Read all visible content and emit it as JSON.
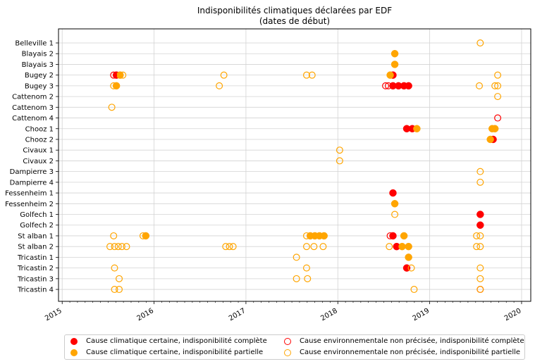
{
  "chart_data": {
    "type": "scatter",
    "title": "Indisponibilités climatiques déclarées par EDF",
    "subtitle": "(dates de début)",
    "xlabel": "",
    "ylabel": "",
    "x_ticks": [
      "2015",
      "2016",
      "2017",
      "2018",
      "2019",
      "2020"
    ],
    "xlim": [
      2014.96,
      2020.1
    ],
    "grid": true,
    "legend_placement": "bottom-center",
    "categories": [
      "Belleville 1",
      "Blayais 2",
      "Blayais 3",
      "Bugey 2",
      "Bugey 3",
      "Cattenom 2",
      "Cattenom 3",
      "Cattenom 4",
      "Chooz 1",
      "Chooz 2",
      "Civaux 1",
      "Civaux 2",
      "Dampierre 3",
      "Dampierre 4",
      "Fessenheim 1",
      "Fessenheim 2",
      "Golfech 1",
      "Golfech 2",
      "St alban 1",
      "St alban 2",
      "Tricastin 1",
      "Tricastin 2",
      "Tricastin 3",
      "Tricastin 4"
    ],
    "colors": {
      "certaine": "#ff0000",
      "partielle": "#ffa500"
    },
    "series": [
      {
        "name": "Cause climatique certaine, indisponibilité complète",
        "color": "#ff0000",
        "filled": true,
        "points": [
          [
            "Bugey 2",
            2015.59
          ],
          [
            "Bugey 2",
            2018.6
          ],
          [
            "Bugey 3",
            2018.6
          ],
          [
            "Bugey 3",
            2018.66
          ],
          [
            "Bugey 3",
            2018.72
          ],
          [
            "Bugey 3",
            2018.77
          ],
          [
            "Chooz 1",
            2018.75
          ],
          [
            "Chooz 1",
            2018.81
          ],
          [
            "Chooz 2",
            2019.69
          ],
          [
            "Fessenheim 1",
            2018.6
          ],
          [
            "Golfech 1",
            2019.55
          ],
          [
            "Golfech 2",
            2019.55
          ],
          [
            "St alban 1",
            2018.6
          ],
          [
            "St alban 2",
            2018.64
          ],
          [
            "Tricastin 2",
            2018.75
          ]
        ]
      },
      {
        "name": "Cause climatique certaine, indisponibilité partielle",
        "color": "#ffa500",
        "filled": true,
        "points": [
          [
            "Blayais 2",
            2018.62
          ],
          [
            "Blayais 3",
            2018.62
          ],
          [
            "Bugey 2",
            2015.63
          ],
          [
            "Bugey 2",
            2018.57
          ],
          [
            "Bugey 3",
            2015.59
          ],
          [
            "Chooz 1",
            2018.86
          ],
          [
            "Chooz 1",
            2019.68
          ],
          [
            "Chooz 1",
            2019.71
          ],
          [
            "Chooz 2",
            2019.66
          ],
          [
            "Fessenheim 2",
            2018.62
          ],
          [
            "St alban 1",
            2015.91
          ],
          [
            "St alban 1",
            2017.7
          ],
          [
            "St alban 1",
            2017.75
          ],
          [
            "St alban 1",
            2017.8
          ],
          [
            "St alban 1",
            2017.85
          ],
          [
            "St alban 1",
            2018.72
          ],
          [
            "St alban 2",
            2018.7
          ],
          [
            "St alban 2",
            2018.77
          ],
          [
            "Tricastin 1",
            2018.77
          ]
        ]
      },
      {
        "name": "Cause environnementale non précisée, indisponibilité complète",
        "color": "#ff0000",
        "filled": false,
        "points": [
          [
            "Bugey 2",
            2015.56
          ],
          [
            "Bugey 3",
            2018.52
          ],
          [
            "Bugey 3",
            2018.55
          ],
          [
            "Cattenom 4",
            2019.74
          ],
          [
            "St alban 1",
            2018.57
          ],
          [
            "Tricastin 4",
            2019.55
          ]
        ]
      },
      {
        "name": "Cause environnementale non précisée, indisponibilité partielle",
        "color": "#ffa500",
        "filled": false,
        "points": [
          [
            "Belleville 1",
            2019.55
          ],
          [
            "Bugey 2",
            2015.66
          ],
          [
            "Bugey 2",
            2016.76
          ],
          [
            "Bugey 2",
            2017.66
          ],
          [
            "Bugey 2",
            2017.72
          ],
          [
            "Bugey 2",
            2019.74
          ],
          [
            "Bugey 3",
            2015.56
          ],
          [
            "Bugey 3",
            2016.71
          ],
          [
            "Bugey 3",
            2019.54
          ],
          [
            "Bugey 3",
            2019.71
          ],
          [
            "Bugey 3",
            2019.74
          ],
          [
            "Cattenom 2",
            2019.74
          ],
          [
            "Cattenom 3",
            2015.54
          ],
          [
            "Civaux 1",
            2018.02
          ],
          [
            "Civaux 2",
            2018.02
          ],
          [
            "Dampierre 3",
            2019.55
          ],
          [
            "Dampierre 4",
            2019.55
          ],
          [
            "Golfech 1",
            2018.62
          ],
          [
            "St alban 1",
            2015.56
          ],
          [
            "St alban 1",
            2015.88
          ],
          [
            "St alban 1",
            2017.66
          ],
          [
            "St alban 1",
            2019.51
          ],
          [
            "St alban 1",
            2019.55
          ],
          [
            "St alban 2",
            2015.52
          ],
          [
            "St alban 2",
            2015.57
          ],
          [
            "St alban 2",
            2015.61
          ],
          [
            "St alban 2",
            2015.65
          ],
          [
            "St alban 2",
            2015.7
          ],
          [
            "St alban 2",
            2016.78
          ],
          [
            "St alban 2",
            2016.82
          ],
          [
            "St alban 2",
            2016.86
          ],
          [
            "St alban 2",
            2017.66
          ],
          [
            "St alban 2",
            2017.74
          ],
          [
            "St alban 2",
            2017.84
          ],
          [
            "St alban 2",
            2018.56
          ],
          [
            "St alban 2",
            2019.51
          ],
          [
            "St alban 2",
            2019.55
          ],
          [
            "Tricastin 1",
            2017.55
          ],
          [
            "Tricastin 2",
            2015.57
          ],
          [
            "Tricastin 2",
            2017.66
          ],
          [
            "Tricastin 2",
            2018.8
          ],
          [
            "Tricastin 2",
            2019.55
          ],
          [
            "Tricastin 3",
            2015.62
          ],
          [
            "Tricastin 3",
            2017.55
          ],
          [
            "Tricastin 3",
            2017.67
          ],
          [
            "Tricastin 3",
            2019.55
          ],
          [
            "Tricastin 4",
            2015.57
          ],
          [
            "Tricastin 4",
            2015.62
          ],
          [
            "Tricastin 4",
            2018.83
          ],
          [
            "Tricastin 4",
            2019.55
          ]
        ]
      }
    ]
  }
}
